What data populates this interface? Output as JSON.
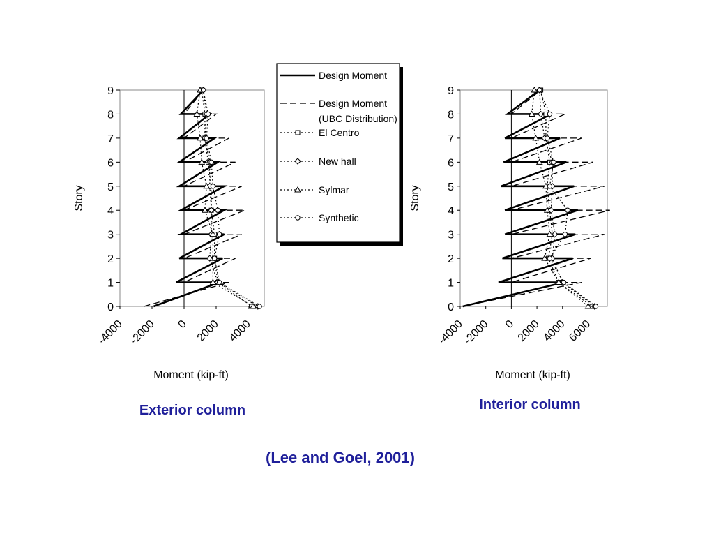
{
  "chart_data": [
    {
      "type": "line",
      "caption": "Exterior column",
      "xlabel": "Moment (kip-ft)",
      "ylabel": "Story",
      "xlim": [
        -4000,
        5000
      ],
      "ylim": [
        0,
        9
      ],
      "x_ticks": [
        "-4000",
        "-2000",
        "0",
        "2000",
        "4000"
      ],
      "y_ticks": [
        "0",
        "1",
        "2",
        "3",
        "4",
        "5",
        "6",
        "7",
        "8",
        "9"
      ],
      "series": [
        {
          "name": "Design Moment",
          "points": [
            [
              -1900,
              0
            ],
            [
              2200,
              1
            ],
            [
              -500,
              1
            ],
            [
              2400,
              2
            ],
            [
              -300,
              2
            ],
            [
              2500,
              3
            ],
            [
              -200,
              3
            ],
            [
              2500,
              4
            ],
            [
              -200,
              4
            ],
            [
              2500,
              5
            ],
            [
              -300,
              5
            ],
            [
              2100,
              6
            ],
            [
              -300,
              6
            ],
            [
              1900,
              7
            ],
            [
              -300,
              7
            ],
            [
              1600,
              8
            ],
            [
              -200,
              8
            ],
            [
              1200,
              9
            ]
          ]
        },
        {
          "name": "Design Moment",
          "points": [
            [
              -2500,
              0
            ],
            [
              2800,
              1
            ],
            [
              0,
              1
            ],
            [
              3200,
              2
            ],
            [
              0,
              2
            ],
            [
              3600,
              3
            ],
            [
              0,
              3
            ],
            [
              3800,
              4
            ],
            [
              0,
              4
            ],
            [
              3600,
              5
            ],
            [
              0,
              5
            ],
            [
              3200,
              6
            ],
            [
              0,
              6
            ],
            [
              2800,
              7
            ],
            [
              0,
              7
            ],
            [
              2000,
              8
            ],
            [
              0,
              8
            ],
            [
              1200,
              9
            ]
          ]
        },
        {
          "name": "El Centro",
          "points": [
            [
              4200,
              0
            ],
            [
              2100,
              1
            ],
            [
              1900,
              2
            ],
            [
              1900,
              3
            ],
            [
              1700,
              4
            ],
            [
              1700,
              5
            ],
            [
              1500,
              6
            ],
            [
              1300,
              7
            ],
            [
              1300,
              8
            ],
            [
              1100,
              9
            ]
          ]
        },
        {
          "name": "New hall",
          "points": [
            [
              4600,
              0
            ],
            [
              2100,
              1
            ],
            [
              1600,
              2
            ],
            [
              1700,
              3
            ],
            [
              1700,
              4
            ],
            [
              1600,
              5
            ],
            [
              1600,
              6
            ],
            [
              1300,
              7
            ],
            [
              1400,
              8
            ],
            [
              1200,
              9
            ]
          ]
        },
        {
          "name": "Sylmar",
          "points": [
            [
              4300,
              0
            ],
            [
              1800,
              1
            ],
            [
              1800,
              2
            ],
            [
              1800,
              3
            ],
            [
              1300,
              4
            ],
            [
              1400,
              5
            ],
            [
              1100,
              6
            ],
            [
              1000,
              7
            ],
            [
              800,
              8
            ],
            [
              1000,
              9
            ]
          ]
        },
        {
          "name": "Synthetic",
          "points": [
            [
              4700,
              0
            ],
            [
              2200,
              1
            ],
            [
              1900,
              2
            ],
            [
              2200,
              3
            ],
            [
              2100,
              4
            ],
            [
              1800,
              5
            ],
            [
              1700,
              6
            ],
            [
              1400,
              7
            ],
            [
              1500,
              8
            ],
            [
              1200,
              9
            ]
          ]
        }
      ]
    },
    {
      "type": "line",
      "caption": "Interior column",
      "xlabel": "Moment (kip-ft)",
      "ylabel": "Story",
      "xlim": [
        -4000,
        7500
      ],
      "ylim": [
        0,
        9
      ],
      "x_ticks": [
        "-4000",
        "-2000",
        "0",
        "2000",
        "4000",
        "6000"
      ],
      "y_ticks": [
        "0",
        "1",
        "2",
        "3",
        "4",
        "5",
        "6",
        "7",
        "8",
        "9"
      ],
      "series": [
        {
          "name": "Design Moment",
          "points": [
            [
              -3800,
              0
            ],
            [
              4100,
              1
            ],
            [
              -1000,
              1
            ],
            [
              4800,
              2
            ],
            [
              -700,
              2
            ],
            [
              5000,
              3
            ],
            [
              -500,
              3
            ],
            [
              5200,
              4
            ],
            [
              -500,
              4
            ],
            [
              4900,
              5
            ],
            [
              -800,
              5
            ],
            [
              4300,
              6
            ],
            [
              -600,
              6
            ],
            [
              3800,
              7
            ],
            [
              -500,
              7
            ],
            [
              3100,
              8
            ],
            [
              -300,
              8
            ],
            [
              2200,
              9
            ]
          ]
        },
        {
          "name": "Design Moment",
          "points": [
            [
              -3900,
              0
            ],
            [
              5500,
              1
            ],
            [
              0,
              1
            ],
            [
              6200,
              2
            ],
            [
              0,
              2
            ],
            [
              7300,
              3
            ],
            [
              0,
              3
            ],
            [
              7700,
              4
            ],
            [
              0,
              4
            ],
            [
              7300,
              5
            ],
            [
              0,
              5
            ],
            [
              6400,
              6
            ],
            [
              0,
              6
            ],
            [
              5500,
              7
            ],
            [
              0,
              7
            ],
            [
              4200,
              8
            ],
            [
              0,
              8
            ],
            [
              2300,
              9
            ]
          ]
        },
        {
          "name": "El Centro",
          "points": [
            [
              6300,
              0
            ],
            [
              3700,
              1
            ],
            [
              2900,
              2
            ],
            [
              3200,
              3
            ],
            [
              3000,
              4
            ],
            [
              2800,
              5
            ],
            [
              3000,
              6
            ],
            [
              2700,
              7
            ],
            [
              2700,
              8
            ],
            [
              2300,
              9
            ]
          ]
        },
        {
          "name": "New hall",
          "points": [
            [
              6500,
              0
            ],
            [
              4000,
              1
            ],
            [
              3200,
              2
            ],
            [
              3400,
              3
            ],
            [
              3100,
              4
            ],
            [
              3200,
              5
            ],
            [
              3200,
              6
            ],
            [
              2600,
              7
            ],
            [
              2300,
              8
            ],
            [
              2200,
              9
            ]
          ]
        },
        {
          "name": "Sylmar",
          "points": [
            [
              6000,
              0
            ],
            [
              3700,
              1
            ],
            [
              2600,
              2
            ],
            [
              3000,
              3
            ],
            [
              2800,
              4
            ],
            [
              2700,
              5
            ],
            [
              2200,
              6
            ],
            [
              1900,
              7
            ],
            [
              1600,
              8
            ],
            [
              1800,
              9
            ]
          ]
        },
        {
          "name": "Synthetic",
          "points": [
            [
              6600,
              0
            ],
            [
              4100,
              1
            ],
            [
              3000,
              2
            ],
            [
              4200,
              3
            ],
            [
              4400,
              4
            ],
            [
              3000,
              5
            ],
            [
              3300,
              6
            ],
            [
              2800,
              7
            ],
            [
              3000,
              8
            ],
            [
              2200,
              9
            ]
          ]
        }
      ]
    }
  ],
  "legend": {
    "entries": [
      {
        "lines": [
          "Design Moment"
        ],
        "style": "solid",
        "marker": "none"
      },
      {
        "lines": [
          "Design Moment",
          "(UBC Distribution)"
        ],
        "style": "dashed",
        "marker": "none"
      },
      {
        "lines": [
          "El Centro"
        ],
        "style": "dotted",
        "marker": "square"
      },
      {
        "lines": [
          "New hall"
        ],
        "style": "dotted",
        "marker": "diamond"
      },
      {
        "lines": [
          "Sylmar"
        ],
        "style": "dotted",
        "marker": "triangle"
      },
      {
        "lines": [
          "Synthetic"
        ],
        "style": "dotted",
        "marker": "circle"
      }
    ]
  },
  "citation": "(Lee and Goel, 2001)"
}
